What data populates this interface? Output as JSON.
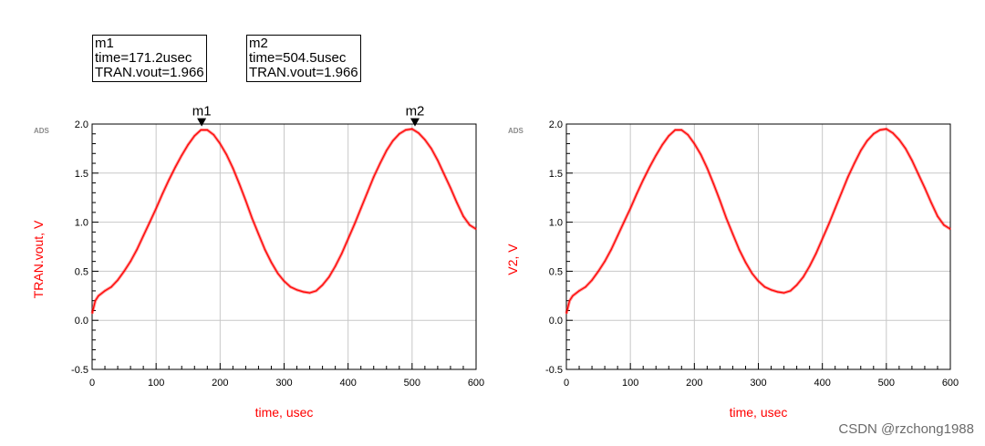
{
  "chart_data": [
    {
      "type": "line",
      "brand_label": "ADS",
      "xlabel": "time, usec",
      "ylabel": "TRAN.vout, V",
      "xlim": [
        0,
        600
      ],
      "ylim": [
        -0.5,
        2.0
      ],
      "xticks": [
        "0",
        "100",
        "200",
        "300",
        "400",
        "500",
        "600"
      ],
      "yticks": [
        "-0.5",
        "0.0",
        "0.5",
        "1.0",
        "1.5",
        "2.0"
      ],
      "grid": true,
      "series_color": "#ff0000",
      "series": [
        {
          "x": [
            0,
            5,
            10,
            20,
            30,
            40,
            50,
            60,
            70,
            80,
            90,
            100,
            110,
            120,
            130,
            140,
            150,
            160,
            170,
            180,
            190,
            200,
            210,
            220,
            230,
            240,
            250,
            260,
            270,
            280,
            290,
            300,
            310,
            320,
            330,
            340,
            350,
            360,
            370,
            380,
            390,
            400,
            410,
            420,
            430,
            440,
            450,
            460,
            470,
            480,
            490,
            500,
            510,
            520,
            530,
            540,
            550,
            560,
            570,
            580,
            590,
            600
          ],
          "values": [
            0.07,
            0.2,
            0.25,
            0.3,
            0.34,
            0.41,
            0.5,
            0.6,
            0.72,
            0.86,
            1.0,
            1.14,
            1.29,
            1.43,
            1.56,
            1.68,
            1.79,
            1.88,
            1.94,
            1.94,
            1.89,
            1.8,
            1.69,
            1.55,
            1.39,
            1.22,
            1.04,
            0.88,
            0.72,
            0.59,
            0.48,
            0.4,
            0.34,
            0.31,
            0.29,
            0.28,
            0.3,
            0.36,
            0.44,
            0.55,
            0.68,
            0.83,
            0.98,
            1.14,
            1.3,
            1.46,
            1.6,
            1.73,
            1.83,
            1.9,
            1.94,
            1.95,
            1.91,
            1.84,
            1.75,
            1.63,
            1.49,
            1.35,
            1.2,
            1.06,
            0.97,
            0.93
          ]
        }
      ],
      "markers": [
        {
          "name": "m1",
          "time": 171.2,
          "value": 1.966,
          "box_lines": [
            "m1",
            "time=171.2usec",
            "TRAN.vout=1.966"
          ]
        },
        {
          "name": "m2",
          "time": 504.5,
          "value": 1.966,
          "box_lines": [
            "m2",
            "time=504.5usec",
            "TRAN.vout=1.966"
          ]
        }
      ]
    },
    {
      "type": "line",
      "brand_label": "ADS",
      "xlabel": "time, usec",
      "ylabel": "V2, V",
      "xlim": [
        0,
        600
      ],
      "ylim": [
        -0.5,
        2.0
      ],
      "xticks": [
        "0",
        "100",
        "200",
        "300",
        "400",
        "500",
        "600"
      ],
      "yticks": [
        "-0.5",
        "0.0",
        "0.5",
        "1.0",
        "1.5",
        "2.0"
      ],
      "grid": true,
      "series_color": "#ff0000",
      "series": [
        {
          "x": [
            0,
            5,
            10,
            20,
            30,
            40,
            50,
            60,
            70,
            80,
            90,
            100,
            110,
            120,
            130,
            140,
            150,
            160,
            170,
            180,
            190,
            200,
            210,
            220,
            230,
            240,
            250,
            260,
            270,
            280,
            290,
            300,
            310,
            320,
            330,
            340,
            350,
            360,
            370,
            380,
            390,
            400,
            410,
            420,
            430,
            440,
            450,
            460,
            470,
            480,
            490,
            500,
            510,
            520,
            530,
            540,
            550,
            560,
            570,
            580,
            590,
            600
          ],
          "values": [
            0.07,
            0.2,
            0.25,
            0.3,
            0.34,
            0.41,
            0.5,
            0.6,
            0.72,
            0.86,
            1.0,
            1.14,
            1.29,
            1.43,
            1.56,
            1.68,
            1.79,
            1.88,
            1.94,
            1.94,
            1.89,
            1.8,
            1.69,
            1.55,
            1.39,
            1.22,
            1.04,
            0.88,
            0.72,
            0.59,
            0.48,
            0.4,
            0.34,
            0.31,
            0.29,
            0.28,
            0.3,
            0.36,
            0.44,
            0.55,
            0.68,
            0.83,
            0.98,
            1.14,
            1.3,
            1.46,
            1.6,
            1.73,
            1.83,
            1.9,
            1.94,
            1.95,
            1.91,
            1.84,
            1.75,
            1.63,
            1.49,
            1.35,
            1.2,
            1.06,
            0.97,
            0.93
          ]
        }
      ],
      "markers": []
    }
  ],
  "watermark": "CSDN @rzchong1988"
}
